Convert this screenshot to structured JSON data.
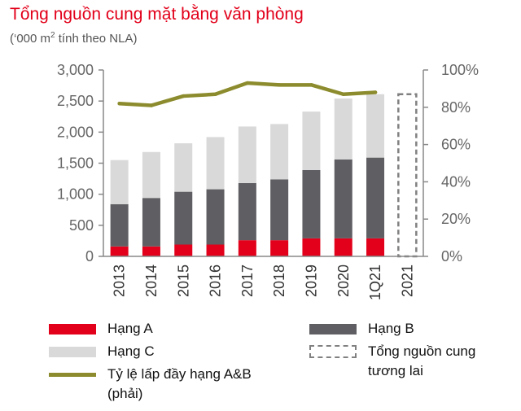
{
  "header": {
    "title": "Tổng nguồn cung mặt bằng văn phòng",
    "subtitle_prefix": "(‘000 m",
    "subtitle_sup": "2",
    "subtitle_suffix": " tính theo NLA)"
  },
  "chart_data": {
    "type": "bar",
    "title": "Tổng nguồn cung mặt bằng văn phòng",
    "categories": [
      "2013",
      "2014",
      "2015",
      "2016",
      "2017",
      "2018",
      "2019",
      "2020",
      "1Q21",
      "2021"
    ],
    "stacked": true,
    "series": [
      {
        "name": "Hạng A",
        "type": "bar",
        "color": "#e2001a",
        "values": [
          160,
          160,
          190,
          190,
          260,
          260,
          290,
          290,
          290,
          null
        ]
      },
      {
        "name": "Hạng B",
        "type": "bar",
        "color": "#5f5f63",
        "values": [
          680,
          780,
          850,
          890,
          920,
          980,
          1100,
          1270,
          1300,
          null
        ]
      },
      {
        "name": "Hạng C",
        "type": "bar",
        "color": "#d9d9d9",
        "values": [
          710,
          740,
          780,
          840,
          910,
          890,
          940,
          980,
          1020,
          null
        ]
      },
      {
        "name": "Tỷ lệ lấp đầy hạng A&B (phải)",
        "type": "line",
        "axis": "right",
        "color": "#8c8c2e",
        "values": [
          82,
          81,
          86,
          87,
          93,
          92,
          92,
          87,
          88,
          null
        ]
      },
      {
        "name": "Tổng nguồn cung tương lai",
        "type": "bar-outline",
        "color": "#808080",
        "values": [
          null,
          null,
          null,
          null,
          null,
          null,
          null,
          null,
          null,
          2610
        ]
      }
    ],
    "ylim": [
      0,
      3000
    ],
    "y_ticks": [
      "0",
      "500",
      "1,000",
      "1,500",
      "2,000",
      "2,500",
      "3,000"
    ],
    "y2lim": [
      0,
      100
    ],
    "y2_ticks": [
      "0%",
      "20%",
      "40%",
      "60%",
      "80%",
      "100%"
    ],
    "grid": false,
    "legend_position": "bottom"
  },
  "legend": {
    "hang_a": "Hạng A",
    "hang_b": "Hạng B",
    "hang_c": "Hạng C",
    "occupancy_line1": "Tỷ lệ lấp đầy hạng A&B",
    "occupancy_line2": "(phải)",
    "future_line1": "Tổng nguồn cung",
    "future_line2": "tương lai"
  }
}
